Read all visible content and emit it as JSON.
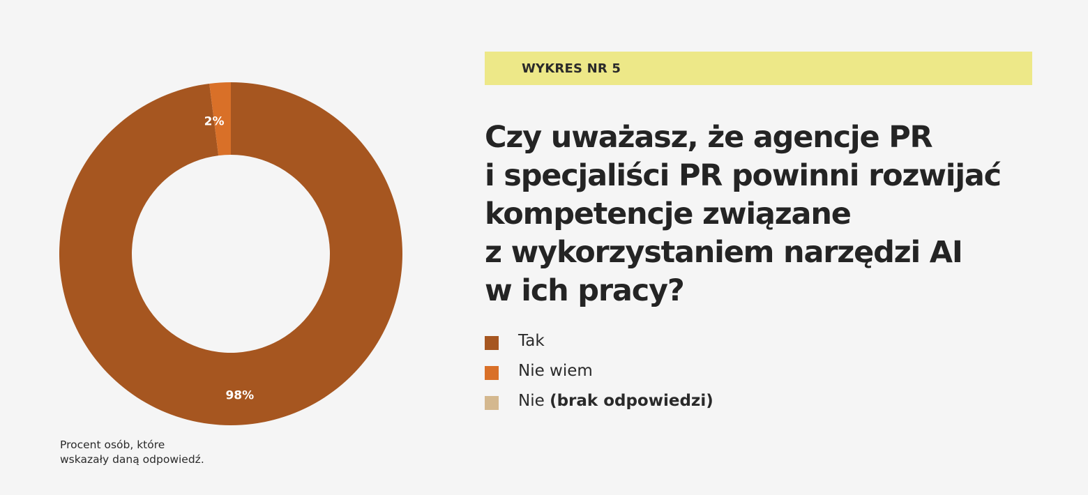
{
  "badge": "WYKRES NR 5",
  "title_lines": [
    "Czy uważasz, że agencje PR",
    "i specjaliści PR powinni rozwijać",
    "kompetencje związane",
    "z wykorzystaniem narzędzi AI",
    "w ich pracy?"
  ],
  "footnote_lines": [
    "Procent osób, które",
    "wskazały daną odpowiedź."
  ],
  "colors": {
    "tak": "#a65620",
    "nie_wiem": "#d97028",
    "nie": "#d4b88f",
    "badge_bg": "#ede888",
    "background": "#f5f5f5"
  },
  "chart_data": {
    "type": "pie",
    "variant": "donut",
    "title": "",
    "categories": [
      "Tak",
      "Nie wiem",
      "Nie (brak odpowiedzi)"
    ],
    "values": [
      98,
      2,
      0
    ],
    "unit": "%",
    "data_labels": [
      "98%",
      "2%",
      ""
    ]
  },
  "legend": [
    {
      "label": "Tak",
      "suffix": "",
      "color": "#a65620"
    },
    {
      "label": "Nie wiem",
      "suffix": "",
      "color": "#d97028"
    },
    {
      "label": "Nie ",
      "suffix": "(brak odpowiedzi)",
      "color": "#d4b88f"
    }
  ]
}
